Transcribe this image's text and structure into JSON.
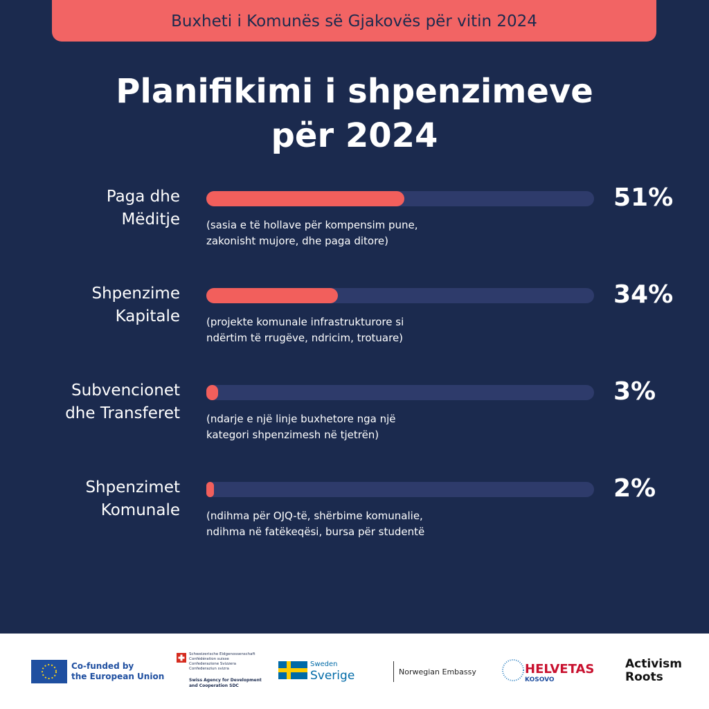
{
  "header": "Buxheti i Komunës së Gjakovës për vitin 2024",
  "chart_data": {
    "type": "bar",
    "title": "Planifikimi i shpenzimeve për 2024",
    "categories": [
      [
        "Paga dhe",
        "Mëditje"
      ],
      [
        "Shpenzime",
        "Kapitale"
      ],
      [
        "Subvencionet",
        "dhe Transferet"
      ],
      [
        "Shpenzimet",
        "Komunale"
      ]
    ],
    "descriptions": [
      [
        "(sasia e të hollave për kompensim pune,",
        "zakonisht mujore, dhe paga ditore)"
      ],
      [
        "(projekte komunale infrastrukturore si",
        "ndërtim të rrugëve, ndricim, trotuare)"
      ],
      [
        "(ndarje e një linje buxhetore nga një",
        "kategori shpenzimesh në tjetrën)"
      ],
      [
        "(ndihma për OJQ-të, shërbime komunalie,",
        "ndihma në fatëkeqësi, bursa për studentë"
      ]
    ],
    "values": [
      51,
      34,
      3,
      2
    ],
    "value_labels": [
      "51%",
      "34%",
      "3%",
      "2%"
    ],
    "xlim": [
      0,
      100
    ],
    "color": "#f25f5c",
    "track_color": "#2e3b6b"
  },
  "footer": {
    "eu": [
      "Co-funded by",
      "the European Union"
    ],
    "swiss": [
      "Schweizerische Eidgenossenschaft",
      "Confédération suisse",
      "Confederazione Svizzera",
      "Confederaziun svizra",
      "Swiss Agency for Development",
      "and Cooperation SDC"
    ],
    "sweden": [
      "Sweden",
      "Sverige"
    ],
    "norway": "Norwegian Embassy",
    "helvetas": [
      "HELVETAS",
      "KOSOVO"
    ],
    "activism": [
      "Activism",
      "Roots"
    ]
  }
}
